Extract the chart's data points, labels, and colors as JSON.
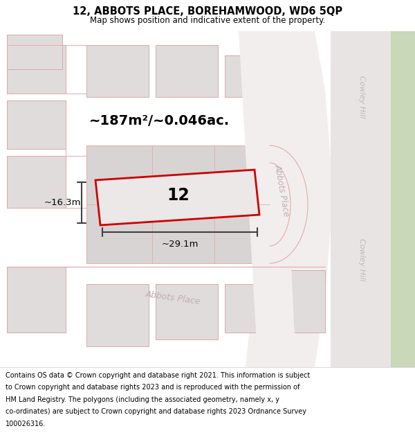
{
  "title_line1": "12, ABBOTS PLACE, BOREHAMWOOD, WD6 5QP",
  "title_line2": "Map shows position and indicative extent of the property.",
  "footer_lines": [
    "Contains OS data © Crown copyright and database right 2021. This information is subject",
    "to Crown copyright and database rights 2023 and is reproduced with the permission of",
    "HM Land Registry. The polygons (including the associated geometry, namely x, y",
    "co-ordinates) are subject to Crown copyright and database rights 2023 Ordnance Survey",
    "100026316."
  ],
  "area_label": "~187m²/~0.046ac.",
  "property_number": "12",
  "width_label": "~29.1m",
  "height_label": "~16.3m",
  "map_bg": "#f2eeee",
  "road_color": "#e8a8a8",
  "building_fill": "#e0dcdc",
  "building_edge": "#d8a8a8",
  "block_fill": "#d8d4d4",
  "property_fill": "#ece8e8",
  "property_edge": "#cc0000",
  "green_fill": "#c8d8b8",
  "cowley_road_fill": "#e8e4e4",
  "white": "#ffffff",
  "street_text_color": "#b8a8a8",
  "meas_color": "#404040"
}
